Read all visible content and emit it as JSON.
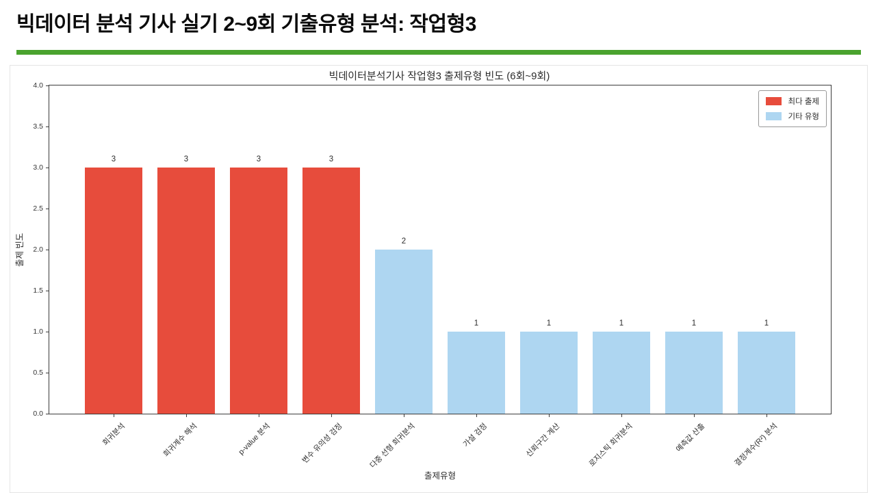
{
  "page": {
    "header_title": "빅데이터 분석 기사 실기 2~9회 기출유형 분석: 작업형3",
    "accent_green": "#4aa32e"
  },
  "chart_data": {
    "type": "bar",
    "title": "빅데이터분석기사 작업형3 출제유형 빈도 (6회~9회)",
    "xlabel": "출제유형",
    "ylabel": "출제 빈도",
    "ylim": [
      0.0,
      4.0
    ],
    "ytick_step": 0.5,
    "ytick_labels": [
      "0.0",
      "0.5",
      "1.0",
      "1.5",
      "2.0",
      "2.5",
      "3.0",
      "3.5",
      "4.0"
    ],
    "grid": false,
    "legend_position": "upper right",
    "categories": [
      "회귀분석",
      "회귀계수 해석",
      "p-value 분석",
      "변수 유의성 검정",
      "다중 선형 회귀분석",
      "가설 검정",
      "신뢰구간 계산",
      "로지스틱 회귀분석",
      "예측값 산출",
      "결정계수(R²) 분석"
    ],
    "values": [
      3,
      3,
      3,
      3,
      2,
      1,
      1,
      1,
      1,
      1
    ],
    "bar_groups": [
      "max",
      "max",
      "max",
      "max",
      "other",
      "other",
      "other",
      "other",
      "other",
      "other"
    ],
    "group_colors": {
      "max": "#e74c3c",
      "other": "#aed6f1"
    },
    "legend": [
      {
        "label": "최다 출제",
        "color": "#e74c3c"
      },
      {
        "label": "기타 유형",
        "color": "#aed6f1"
      }
    ]
  }
}
